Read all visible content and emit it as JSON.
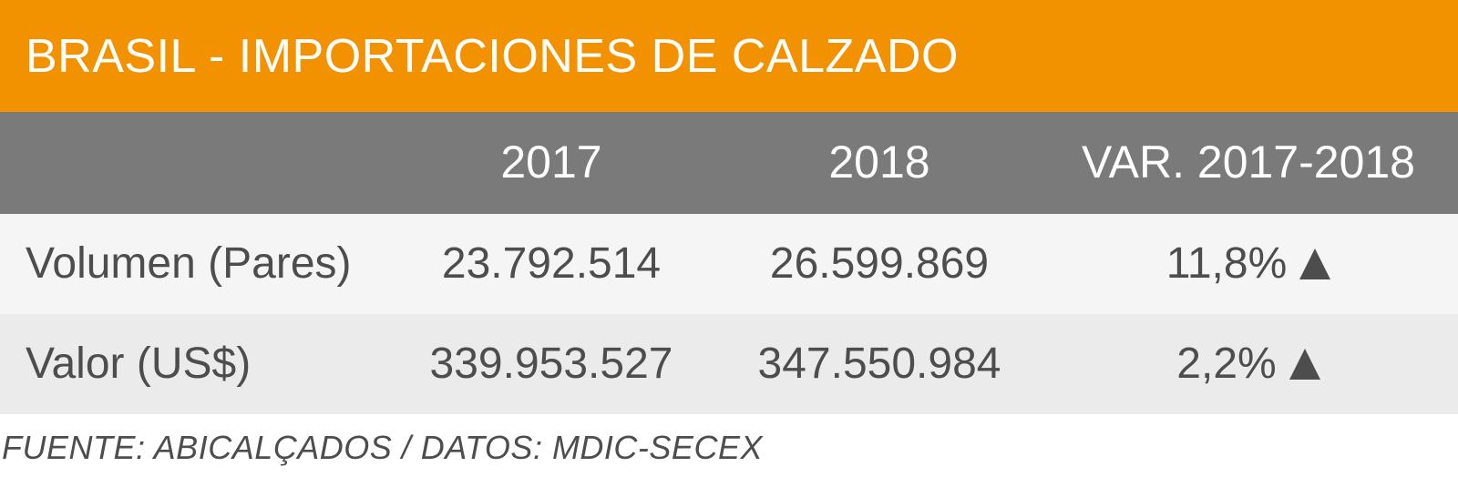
{
  "colors": {
    "title_background": "#f39200",
    "header_background": "#7b7a7a",
    "row_odd_background": "#f5f5f5",
    "row_even_background": "#ebebeb",
    "text": "#4d4d4d"
  },
  "chart_data": {
    "type": "table",
    "title": "BRASIL - IMPORTACIONES DE CALZADO",
    "columns": [
      "",
      "2017",
      "2018",
      "VAR. 2017-2018"
    ],
    "rows": [
      {
        "label": "Volumen (Pares)",
        "v2017": "23.792.514",
        "v2018": "26.599.869",
        "var": "11,8%",
        "trend": "up"
      },
      {
        "label": "Valor (US$)",
        "v2017": "339.953.527",
        "v2018": "347.550.984",
        "var": "2,2%",
        "trend": "up"
      }
    ],
    "source": "FUENTE: ABICALÇADOS / DATOS: MDIC-SECEX"
  }
}
